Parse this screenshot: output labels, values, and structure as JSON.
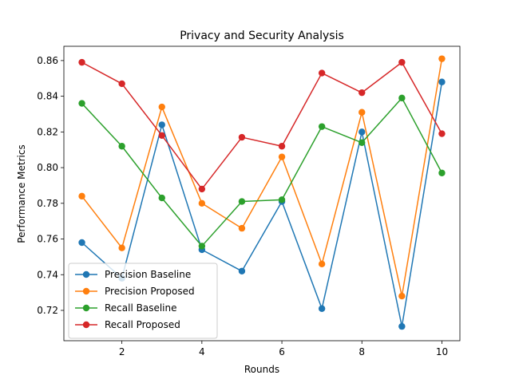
{
  "chart_data": {
    "type": "line",
    "title": "Privacy and Security Analysis",
    "xlabel": "Rounds",
    "ylabel": "Performance Metrics",
    "x": [
      1,
      2,
      3,
      4,
      5,
      6,
      7,
      8,
      9,
      10
    ],
    "xlim": [
      0.55,
      10.45
    ],
    "ylim": [
      0.703,
      0.868
    ],
    "xticks": [
      2,
      4,
      6,
      8,
      10
    ],
    "yticks": [
      0.72,
      0.74,
      0.76,
      0.78,
      0.8,
      0.82,
      0.84,
      0.86
    ],
    "ytick_labels": [
      "0.72",
      "0.74",
      "0.76",
      "0.78",
      "0.80",
      "0.82",
      "0.84",
      "0.86"
    ],
    "grid": false,
    "legend_position": "lower-left",
    "series": [
      {
        "name": "Precision Baseline",
        "color": "#1f77b4",
        "values": [
          0.758,
          0.738,
          0.824,
          0.754,
          0.742,
          0.781,
          0.721,
          0.82,
          0.711,
          0.848
        ]
      },
      {
        "name": "Precision Proposed",
        "color": "#ff7f0e",
        "values": [
          0.784,
          0.755,
          0.834,
          0.78,
          0.766,
          0.806,
          0.746,
          0.831,
          0.728,
          0.861
        ]
      },
      {
        "name": "Recall Baseline",
        "color": "#2ca02c",
        "values": [
          0.836,
          0.812,
          0.783,
          0.756,
          0.781,
          0.782,
          0.823,
          0.814,
          0.839,
          0.797
        ]
      },
      {
        "name": "Recall Proposed",
        "color": "#d62728",
        "values": [
          0.859,
          0.847,
          0.818,
          0.788,
          0.817,
          0.812,
          0.853,
          0.842,
          0.859,
          0.819
        ]
      }
    ]
  }
}
